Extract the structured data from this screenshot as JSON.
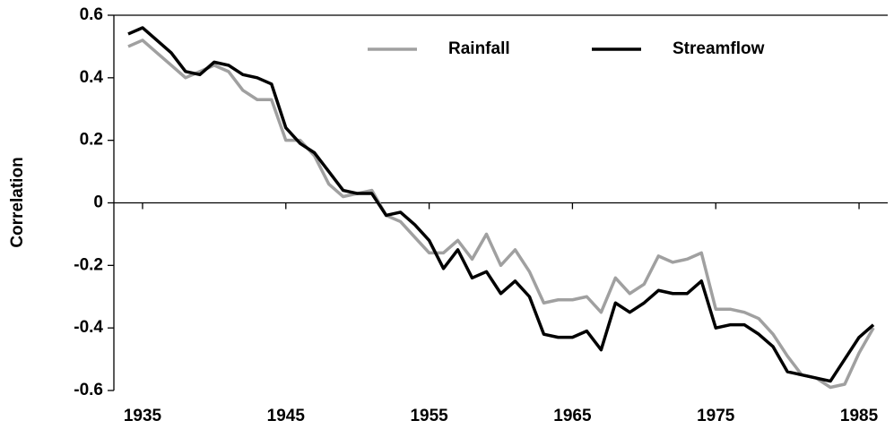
{
  "chart_data": {
    "type": "line",
    "y_label": "Correlation",
    "x": [
      1934,
      1935,
      1936,
      1937,
      1938,
      1939,
      1940,
      1941,
      1942,
      1943,
      1944,
      1945,
      1946,
      1947,
      1948,
      1949,
      1950,
      1951,
      1952,
      1953,
      1954,
      1955,
      1956,
      1957,
      1958,
      1959,
      1960,
      1961,
      1962,
      1963,
      1964,
      1965,
      1966,
      1967,
      1968,
      1969,
      1970,
      1971,
      1972,
      1973,
      1974,
      1975,
      1976,
      1977,
      1978,
      1979,
      1980,
      1981,
      1982,
      1983,
      1984,
      1985,
      1986
    ],
    "series": [
      {
        "name": "Rainfall",
        "color": "#a0a0a0",
        "values": [
          0.5,
          0.52,
          0.48,
          0.44,
          0.4,
          0.42,
          0.44,
          0.42,
          0.36,
          0.33,
          0.33,
          0.2,
          0.2,
          0.15,
          0.06,
          0.02,
          0.03,
          0.04,
          -0.04,
          -0.06,
          -0.11,
          -0.16,
          -0.16,
          -0.12,
          -0.18,
          -0.1,
          -0.2,
          -0.15,
          -0.22,
          -0.32,
          -0.31,
          -0.31,
          -0.3,
          -0.35,
          -0.24,
          -0.29,
          -0.26,
          -0.17,
          -0.19,
          -0.18,
          -0.16,
          -0.34,
          -0.34,
          -0.35,
          -0.37,
          -0.42,
          -0.49,
          -0.55,
          -0.56,
          -0.59,
          -0.58,
          -0.48,
          -0.4
        ]
      },
      {
        "name": "Streamflow",
        "color": "#000000",
        "values": [
          0.54,
          0.56,
          0.52,
          0.48,
          0.42,
          0.41,
          0.45,
          0.44,
          0.41,
          0.4,
          0.38,
          0.24,
          0.19,
          0.16,
          0.1,
          0.04,
          0.03,
          0.03,
          -0.04,
          -0.03,
          -0.07,
          -0.12,
          -0.21,
          -0.15,
          -0.24,
          -0.22,
          -0.29,
          -0.25,
          -0.3,
          -0.42,
          -0.43,
          -0.43,
          -0.41,
          -0.47,
          -0.32,
          -0.35,
          -0.32,
          -0.28,
          -0.29,
          -0.29,
          -0.25,
          -0.4,
          -0.39,
          -0.39,
          -0.42,
          -0.46,
          -0.54,
          -0.55,
          -0.56,
          -0.57,
          -0.5,
          -0.43,
          -0.39
        ]
      }
    ],
    "xlim": [
      1933,
      1987
    ],
    "xticks": [
      1935,
      1945,
      1955,
      1965,
      1975,
      1985
    ],
    "ylim": [
      -0.6,
      0.6
    ],
    "yticks": [
      0.6,
      0.4,
      0.2,
      0,
      -0.2,
      -0.4,
      -0.6
    ],
    "legend": "top"
  }
}
